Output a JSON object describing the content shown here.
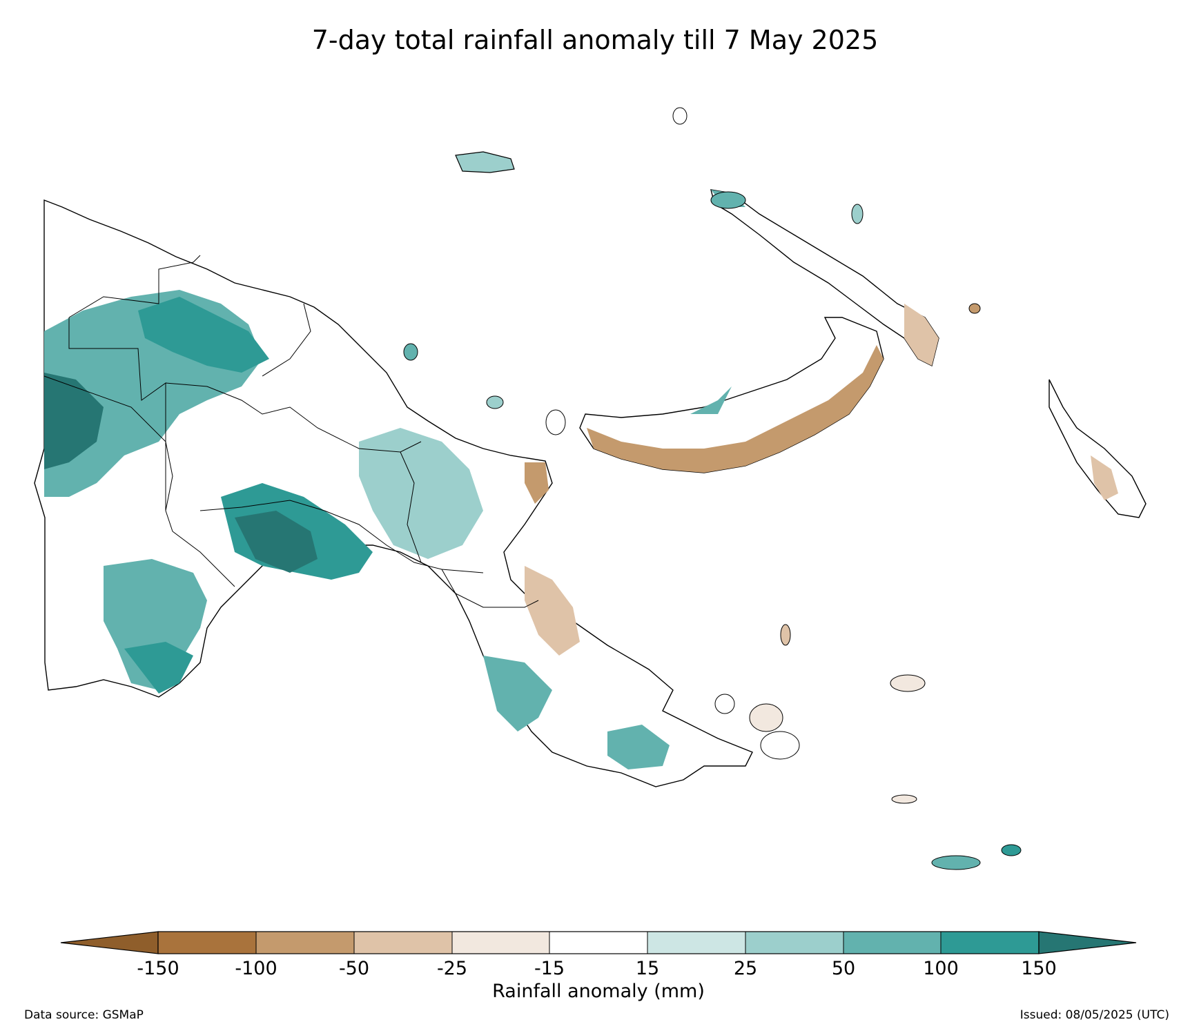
{
  "title": "7-day total rainfall anomaly till 7 May 2025",
  "colorbar": {
    "label": "Rainfall anomaly (mm)",
    "ticks": [
      "-150",
      "-100",
      "-50",
      "-25",
      "-15",
      "15",
      "25",
      "50",
      "100",
      "150"
    ],
    "colors": {
      "extend_low": "#8f5e2b",
      "b1": "#a9733c",
      "b2": "#c49a6d",
      "b3": "#dfc3a8",
      "b4": "#f2e8df",
      "b5": "#ffffff",
      "b6": "#cde6e4",
      "b7": "#9ccfcc",
      "b8": "#62b2ae",
      "b9": "#2e9a95",
      "extend_high": "#267673"
    }
  },
  "footer": {
    "source": "Data source: GSMaP",
    "issued": "Issued: 08/05/2025 (UTC)"
  }
}
